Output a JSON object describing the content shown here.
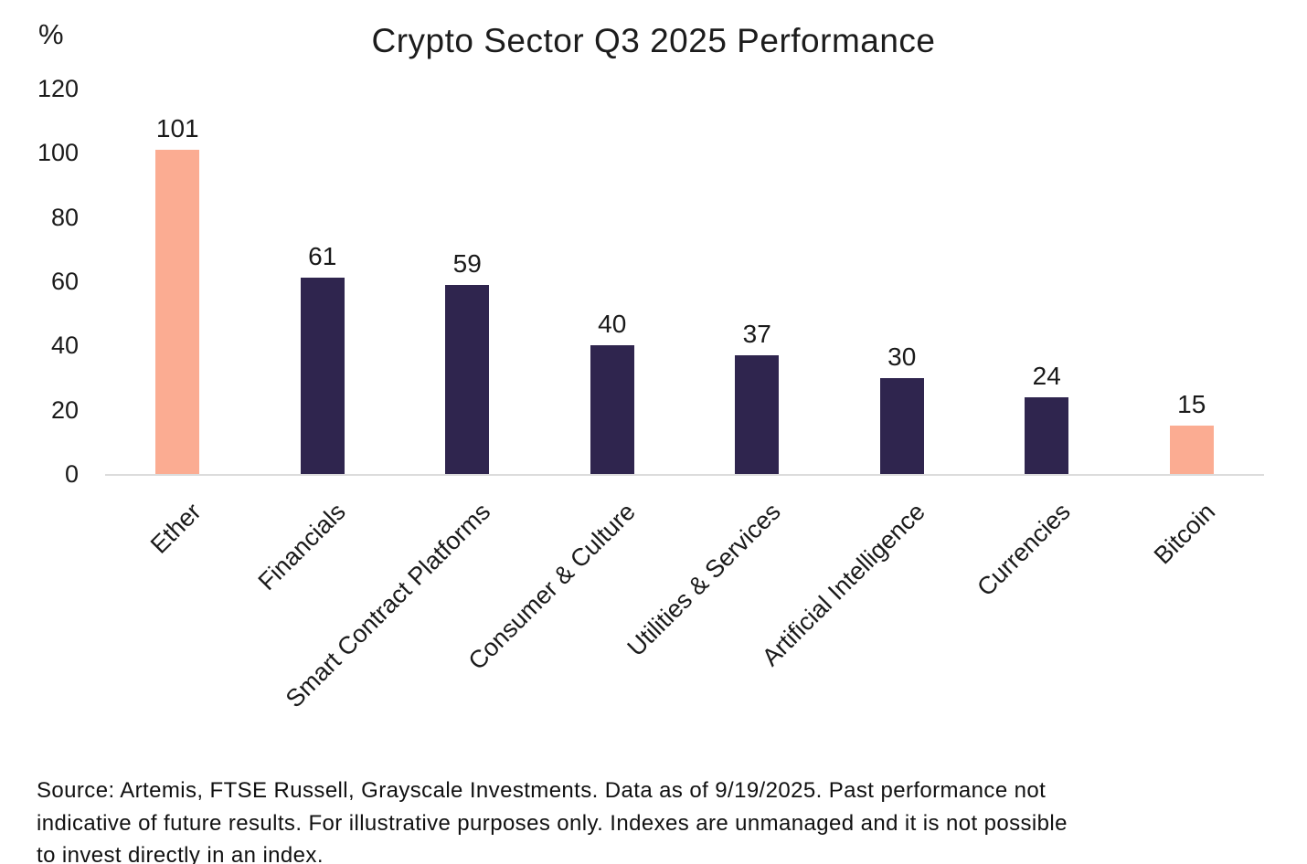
{
  "chart_data": {
    "type": "bar",
    "title": "Crypto Sector Q3 2025 Performance",
    "ylabel": "%",
    "xlabel": "",
    "ylim": [
      0,
      120
    ],
    "yticks": [
      0,
      20,
      40,
      60,
      80,
      100,
      120
    ],
    "categories": [
      "Ether",
      "Financials",
      "Smart Contract Platforms",
      "Consumer & Culture",
      "Utilities & Services",
      "Artificial Intelligence",
      "Currencies",
      "Bitcoin"
    ],
    "values": [
      101,
      61,
      59,
      40,
      37,
      30,
      24,
      15
    ],
    "bar_colors": [
      "#FBAC92",
      "#2F254E",
      "#2F254E",
      "#2F254E",
      "#2F254E",
      "#2F254E",
      "#2F254E",
      "#FBAC92"
    ],
    "value_labels": [
      "101",
      "61",
      "59",
      "40",
      "37",
      "30",
      "24",
      "15"
    ],
    "grid": false,
    "legend": false,
    "xlabel_rotation_deg": -45
  },
  "colors": {
    "highlight_bar": "#FBAC92",
    "default_bar": "#2F254E",
    "axis_line": "#DCDCDC",
    "text": "#1A1A1A"
  },
  "source_note": {
    "lines": [
      "Source: Artemis, FTSE Russell, Grayscale Investments. Data as of 9/19/2025. Past performance not",
      "indicative of future results. For illustrative purposes only. Indexes are unmanaged and it is not possible",
      "to invest directly in an index."
    ]
  }
}
